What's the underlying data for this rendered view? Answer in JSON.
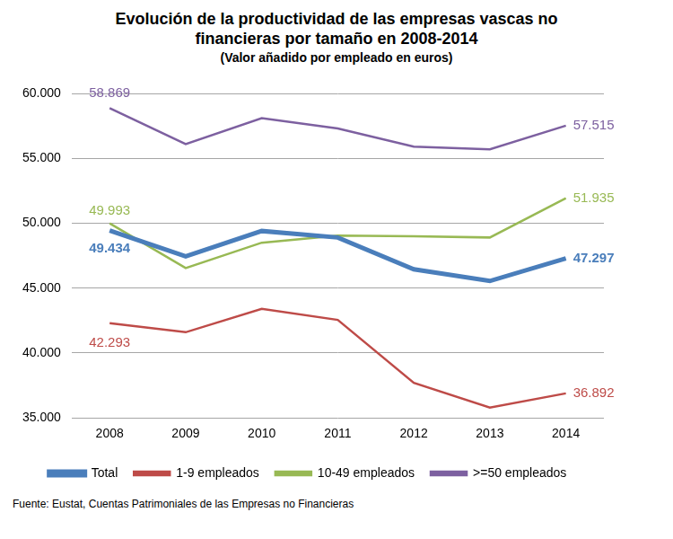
{
  "chart_data": {
    "type": "line",
    "title": "Evolución de la productividad de las empresas vascas no financieras por tamaño en 2008-2014",
    "subtitle": "(Valor añadido por empleado en euros)",
    "source": "Fuente: Eustat, Cuentas Patrimoniales de las Empresas no Financieras",
    "categories": [
      "2008",
      "2009",
      "2010",
      "2011",
      "2012",
      "2013",
      "2014"
    ],
    "series": [
      {
        "name": "Total",
        "color": "#4a7ebb",
        "values": [
          49434,
          47450,
          49400,
          48900,
          46450,
          45550,
          47297
        ],
        "value_labels": [
          "49.434",
          null,
          null,
          null,
          null,
          null,
          "47.297"
        ]
      },
      {
        "name": "1-9 empleados",
        "color": "#be4b48",
        "values": [
          42293,
          41600,
          43400,
          42550,
          37700,
          35800,
          36892
        ],
        "value_labels": [
          "42.293",
          null,
          null,
          null,
          null,
          null,
          "36.892"
        ]
      },
      {
        "name": "10-49 empleados",
        "color": "#98b954",
        "values": [
          49993,
          46550,
          48500,
          49050,
          49000,
          48900,
          51935
        ],
        "value_labels": [
          "49.993",
          null,
          null,
          null,
          null,
          null,
          "51.935"
        ]
      },
      {
        "name": ">=50 empleados",
        "color": "#7d60a0",
        "values": [
          58869,
          56100,
          58100,
          57300,
          55900,
          55700,
          57515
        ],
        "value_labels": [
          "58.869",
          null,
          null,
          null,
          null,
          null,
          "57.515"
        ]
      }
    ],
    "ylim": [
      35000,
      60000
    ],
    "yticks": [
      {
        "value": 35000,
        "label": "35.000"
      },
      {
        "value": 40000,
        "label": "40.000"
      },
      {
        "value": 45000,
        "label": "45.000"
      },
      {
        "value": 50000,
        "label": "50.000"
      },
      {
        "value": 55000,
        "label": "55.000"
      },
      {
        "value": 60000,
        "label": "60.000"
      }
    ],
    "grid": true,
    "legend": "bottom"
  }
}
